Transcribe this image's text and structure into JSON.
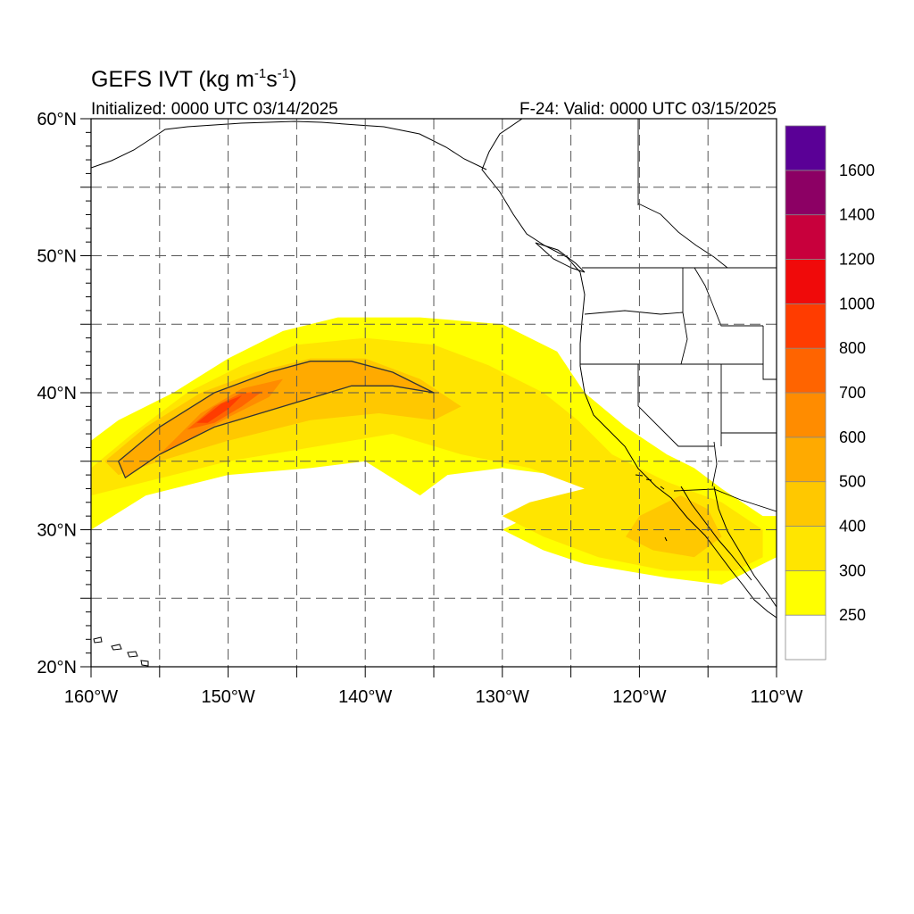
{
  "title": {
    "main_prefix": "GEFS IVT (kg m",
    "main_sup1": "-1",
    "main_mid": "s",
    "main_sup2": "-1",
    "main_suffix": ")",
    "initialized": "Initialized: 0000 UTC 03/14/2025",
    "valid": "F-24: Valid: 0000 UTC 03/15/2025"
  },
  "map": {
    "lon_range": [
      -160,
      -110
    ],
    "lat_range": [
      20,
      60
    ],
    "x_ticks": [
      {
        "lon": -160,
        "label": "160°W"
      },
      {
        "lon": -150,
        "label": "150°W"
      },
      {
        "lon": -140,
        "label": "140°W"
      },
      {
        "lon": -130,
        "label": "130°W"
      },
      {
        "lon": -120,
        "label": "120°W"
      },
      {
        "lon": -110,
        "label": "110°W"
      }
    ],
    "y_ticks": [
      {
        "lat": 60,
        "label": "60°N"
      },
      {
        "lat": 50,
        "label": "50°N"
      },
      {
        "lat": 40,
        "label": "40°N"
      },
      {
        "lat": 30,
        "label": "30°N"
      },
      {
        "lat": 20,
        "label": "20°N"
      }
    ],
    "grid_lons": [
      -155,
      -150,
      -145,
      -140,
      -135,
      -130,
      -125,
      -120,
      -115
    ],
    "grid_lats": [
      25,
      30,
      35,
      40,
      45,
      50,
      55
    ],
    "grid": "dashed",
    "contour_level": 500
  },
  "colorbar": {
    "levels": [
      {
        "label": "",
        "color": "#ffffff"
      },
      {
        "label": "250",
        "color": "#ffff00"
      },
      {
        "label": "300",
        "color": "#ffe500"
      },
      {
        "label": "400",
        "color": "#ffc800"
      },
      {
        "label": "500",
        "color": "#ffaa00"
      },
      {
        "label": "600",
        "color": "#ff8c00"
      },
      {
        "label": "700",
        "color": "#ff6400"
      },
      {
        "label": "800",
        "color": "#ff3c00"
      },
      {
        "label": "1000",
        "color": "#f00a0a"
      },
      {
        "label": "1200",
        "color": "#c8003c"
      },
      {
        "label": "1400",
        "color": "#8c0064"
      },
      {
        "label": "1600",
        "color": "#5a0096"
      }
    ]
  },
  "ivt_regions": [
    {
      "level": 250,
      "color": "#ffff00",
      "points": [
        [
          -160,
          36.5
        ],
        [
          -158,
          38
        ],
        [
          -154,
          40
        ],
        [
          -150,
          42.5
        ],
        [
          -146,
          44.5
        ],
        [
          -142,
          45.5
        ],
        [
          -136,
          45.5
        ],
        [
          -130,
          45
        ],
        [
          -126,
          43
        ],
        [
          -124,
          40
        ],
        [
          -121,
          37.5
        ],
        [
          -118,
          35.5
        ],
        [
          -116,
          34.5
        ],
        [
          -114,
          33
        ],
        [
          -111,
          31
        ],
        [
          -110,
          31
        ],
        [
          -110,
          28
        ],
        [
          -112,
          27
        ],
        [
          -114,
          26
        ],
        [
          -118,
          26.5
        ],
        [
          -124,
          27.5
        ],
        [
          -127,
          28.5
        ],
        [
          -130,
          30
        ],
        [
          -128,
          31
        ],
        [
          -124.5,
          32
        ],
        [
          -120,
          32
        ],
        [
          -124,
          33
        ],
        [
          -126,
          34
        ],
        [
          -130,
          34.5
        ],
        [
          -134,
          34
        ],
        [
          -136,
          32.5
        ],
        [
          -140,
          35
        ],
        [
          -144,
          34.5
        ],
        [
          -150,
          34
        ],
        [
          -156,
          32.5
        ],
        [
          -160,
          30
        ]
      ]
    },
    {
      "level": 300,
      "color": "#ffe500",
      "points": [
        [
          -160,
          34.5
        ],
        [
          -157,
          37
        ],
        [
          -153,
          40
        ],
        [
          -149,
          42
        ],
        [
          -145,
          43.5
        ],
        [
          -140,
          44
        ],
        [
          -135,
          43.5
        ],
        [
          -131,
          42
        ],
        [
          -127,
          40
        ],
        [
          -124.5,
          38
        ],
        [
          -122,
          35.5
        ],
        [
          -118,
          33.5
        ],
        [
          -114,
          32
        ],
        [
          -111,
          30
        ],
        [
          -111,
          28
        ],
        [
          -113,
          27
        ],
        [
          -118,
          27
        ],
        [
          -123,
          28
        ],
        [
          -127,
          29.5
        ],
        [
          -130,
          31
        ],
        [
          -128,
          32
        ],
        [
          -124,
          33
        ],
        [
          -128,
          34.5
        ],
        [
          -133,
          35.5
        ],
        [
          -138,
          37
        ],
        [
          -144,
          36
        ],
        [
          -150,
          35
        ],
        [
          -156,
          33.5
        ],
        [
          -160,
          32.5
        ]
      ]
    },
    {
      "level": 400,
      "color": "#ffc800",
      "points": [
        [
          -159,
          35
        ],
        [
          -156,
          37.5
        ],
        [
          -152,
          40
        ],
        [
          -148,
          41.5
        ],
        [
          -144,
          42.5
        ],
        [
          -140,
          42.5
        ],
        [
          -136,
          41
        ],
        [
          -133,
          39
        ],
        [
          -135,
          38
        ],
        [
          -139,
          38.5
        ],
        [
          -144,
          38
        ],
        [
          -150,
          36.5
        ],
        [
          -155,
          35
        ],
        [
          -158,
          34
        ]
      ]
    },
    {
      "level": 400,
      "color": "#ffc800",
      "points": [
        [
          -120,
          31
        ],
        [
          -117,
          32.5
        ],
        [
          -115,
          31.5
        ],
        [
          -114,
          29.5
        ],
        [
          -116,
          28
        ],
        [
          -119,
          28.5
        ],
        [
          -121,
          29.5
        ]
      ]
    },
    {
      "level": 500,
      "color": "#ffaa00",
      "points": [
        [
          -158,
          35
        ],
        [
          -155,
          37.5
        ],
        [
          -151,
          40
        ],
        [
          -147,
          41.5
        ],
        [
          -144,
          42.3
        ],
        [
          -141,
          42.3
        ],
        [
          -138,
          41.5
        ],
        [
          -135,
          40
        ],
        [
          -138,
          40.5
        ],
        [
          -141,
          40.5
        ],
        [
          -146,
          39
        ],
        [
          -151,
          37.5
        ],
        [
          -155,
          35.5
        ],
        [
          -157.5,
          33.8
        ]
      ]
    },
    {
      "level": 600,
      "color": "#ff8c00",
      "points": [
        [
          -155,
          35.5
        ],
        [
          -152,
          38.5
        ],
        [
          -149,
          40.3
        ],
        [
          -146,
          41
        ],
        [
          -147,
          39.7
        ],
        [
          -150,
          38.2
        ],
        [
          -153,
          36.5
        ]
      ]
    },
    {
      "level": 700,
      "color": "#ff6400",
      "points": [
        [
          -153,
          37.3
        ],
        [
          -151,
          39
        ],
        [
          -149,
          40
        ],
        [
          -147.5,
          40.1
        ],
        [
          -149,
          39
        ],
        [
          -151,
          37.8
        ]
      ]
    },
    {
      "level": 800,
      "color": "#ff3c00",
      "points": [
        [
          -152.3,
          37.8
        ],
        [
          -150.5,
          39.2
        ],
        [
          -149,
          39.8
        ],
        [
          -150,
          38.8
        ],
        [
          -151.5,
          37.8
        ]
      ]
    }
  ]
}
